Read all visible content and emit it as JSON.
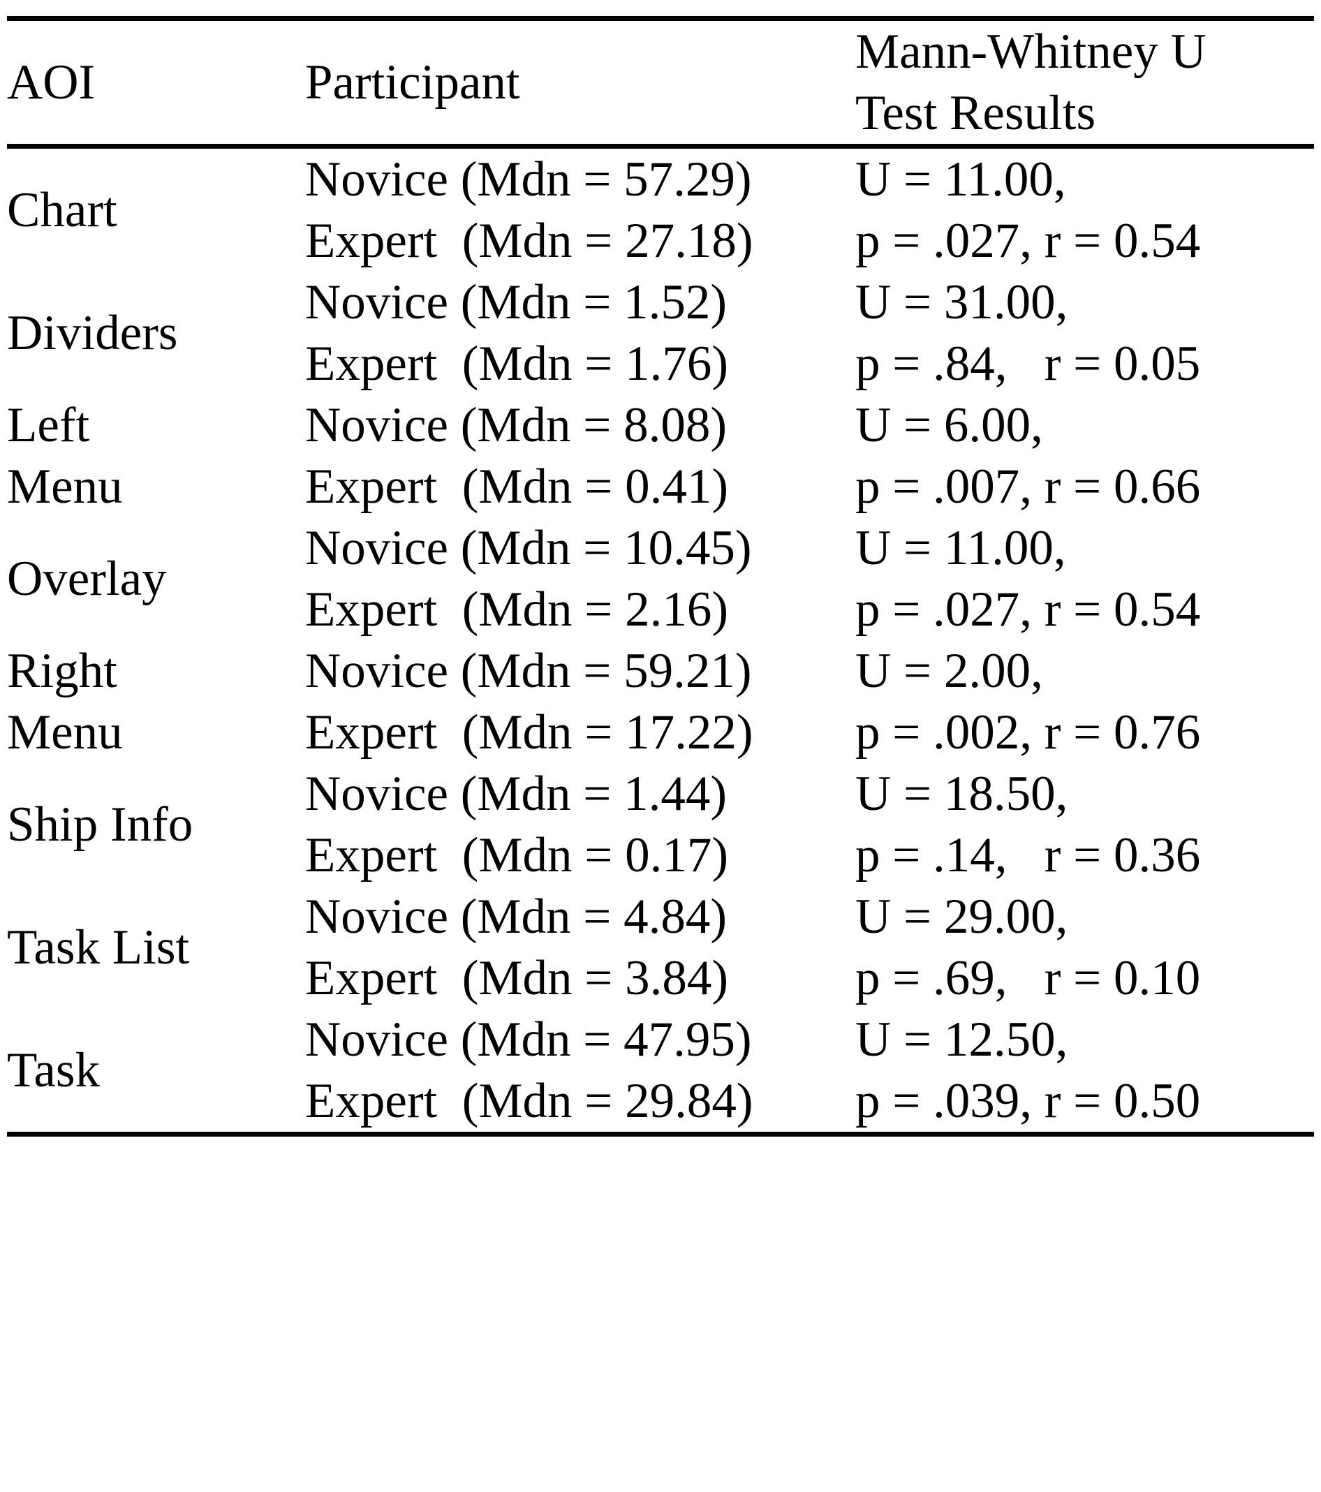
{
  "table": {
    "headers": {
      "aoi": "AOI",
      "participant": "Participant",
      "results": "Mann-Whitney U\nTest Results"
    },
    "rows": [
      {
        "aoi": "Chart",
        "novice": "Novice (Mdn = 57.29)",
        "expert": "Expert  (Mdn = 27.18)",
        "u": "U = 11.00,",
        "pr": "p = .027, r = 0.54"
      },
      {
        "aoi": "Dividers",
        "novice": "Novice (Mdn = 1.52)",
        "expert": "Expert  (Mdn = 1.76)",
        "u": "U = 31.00,",
        "pr": "p = .84,   r = 0.05"
      },
      {
        "aoi": "Left\nMenu",
        "novice": "Novice (Mdn = 8.08)",
        "expert": "Expert  (Mdn = 0.41)",
        "u": "U = 6.00,",
        "pr": "p = .007, r = 0.66"
      },
      {
        "aoi": "Overlay",
        "novice": "Novice (Mdn = 10.45)",
        "expert": "Expert  (Mdn = 2.16)",
        "u": "U = 11.00,",
        "pr": "p = .027, r = 0.54"
      },
      {
        "aoi": "Right\nMenu",
        "novice": "Novice (Mdn = 59.21)",
        "expert": "Expert  (Mdn = 17.22)",
        "u": "U = 2.00,",
        "pr": "p = .002, r = 0.76"
      },
      {
        "aoi": "Ship Info",
        "novice": "Novice (Mdn = 1.44)",
        "expert": "Expert  (Mdn = 0.17)",
        "u": "U = 18.50,",
        "pr": "p = .14,   r = 0.36"
      },
      {
        "aoi": "Task List",
        "novice": "Novice (Mdn = 4.84)",
        "expert": "Expert  (Mdn = 3.84)",
        "u": "U = 29.00,",
        "pr": "p = .69,   r = 0.10"
      },
      {
        "aoi": "Task",
        "novice": "Novice (Mdn = 47.95)",
        "expert": "Expert  (Mdn = 29.84)",
        "u": "U = 12.50,",
        "pr": "p = .039, r = 0.50"
      }
    ]
  }
}
